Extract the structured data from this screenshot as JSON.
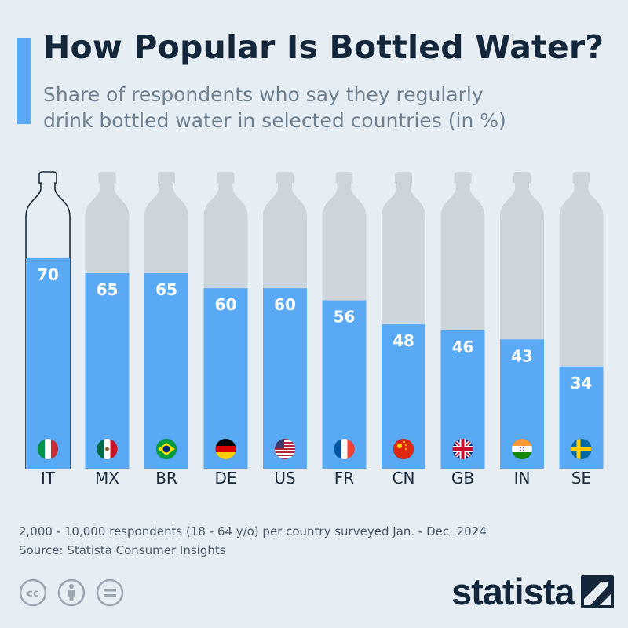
{
  "header": {
    "title": "How Popular Is Bottled Water?",
    "subtitle": "Share of respondents who say they regularly drink bottled water in selected countries (in %)"
  },
  "chart_data": {
    "type": "bar",
    "categories": [
      "IT",
      "MX",
      "BR",
      "DE",
      "US",
      "FR",
      "CN",
      "GB",
      "IN",
      "SE"
    ],
    "values": [
      70,
      65,
      65,
      60,
      60,
      56,
      48,
      46,
      43,
      34
    ],
    "unit": "%",
    "ylim": [
      0,
      100
    ],
    "grid": false,
    "legend": "none",
    "title": "How Popular Is Bottled Water?",
    "subtitle": "Share of respondents who say they regularly drink bottled water in selected countries (in %)"
  },
  "footer": {
    "note": "2,000 - 10,000 respondents (18 - 64 y/o) per country surveyed Jan. - Dec. 2024",
    "source": "Source: Statista Consumer Insights",
    "brand": "statista",
    "icons": [
      "creative-commons-icon",
      "attribution-icon",
      "no-derivatives-icon"
    ]
  },
  "colors": {
    "bar": "#5aa9f5",
    "bottle": "#cdd5dc",
    "bottle_highlight_outline": "#1b2b3c",
    "background": "#e6edf3",
    "accent": "#5aa9f5"
  }
}
